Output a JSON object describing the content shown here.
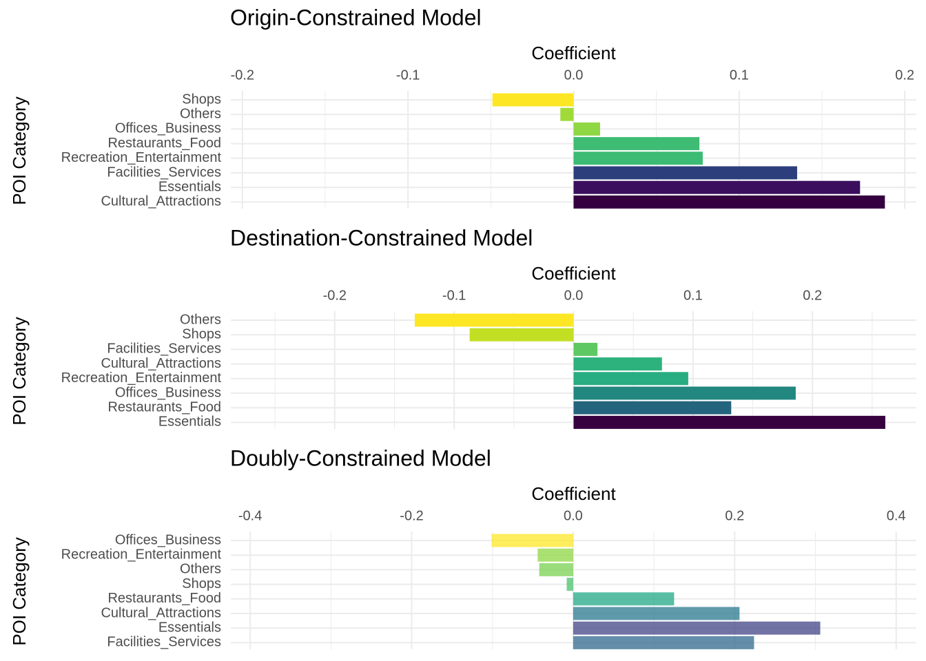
{
  "chart_data": [
    {
      "type": "bar",
      "orientation": "horizontal",
      "title": "Origin-Constrained Model",
      "x_label": "Coefficient",
      "y_label": "POI Category",
      "categories": [
        "Shops",
        "Others",
        "Offices_Business",
        "Restaurants_Food",
        "Recreation_Entertainment",
        "Facilities_Services",
        "Essentials",
        "Cultural_Attractions"
      ],
      "values": [
        -0.049,
        -0.008,
        0.016,
        0.076,
        0.078,
        0.135,
        0.173,
        0.188
      ],
      "colors": [
        "#fde725",
        "#a0da39",
        "#8fd744",
        "#3fbc73",
        "#3cbb75",
        "#2c3f7c",
        "#3b0f5e",
        "#35003f"
      ],
      "xlim": [
        -0.207,
        0.207
      ],
      "xticks": [
        -0.2,
        -0.1,
        {
          "value": 0,
          "label": "0.0"
        },
        0.1,
        0.2
      ],
      "xminor": [
        -0.15,
        -0.05,
        0.05,
        0.15
      ],
      "grid": true
    },
    {
      "type": "bar",
      "orientation": "horizontal",
      "title": "Destination-Constrained Model",
      "x_label": "Coefficient",
      "y_label": "POI Category",
      "categories": [
        "Others",
        "Shops",
        "Facilities_Services",
        "Cultural_Attractions",
        "Recreation_Entertainment",
        "Offices_Business",
        "Restaurants_Food",
        "Essentials"
      ],
      "values": [
        -0.133,
        -0.087,
        0.02,
        0.074,
        0.096,
        0.186,
        0.132,
        0.261
      ],
      "colors": [
        "#fde725",
        "#c2df23",
        "#5ec962",
        "#2db27d",
        "#27ad81",
        "#21877f",
        "#25647d",
        "#370140"
      ],
      "xlim": [
        -0.287,
        0.287
      ],
      "xticks": [
        -0.2,
        -0.1,
        {
          "value": 0,
          "label": "0.0"
        },
        0.1,
        0.2
      ],
      "xminor": [
        -0.25,
        -0.15,
        -0.05,
        0.05,
        0.15,
        0.25
      ],
      "grid": true
    },
    {
      "type": "bar",
      "orientation": "horizontal",
      "title": "Doubly-Constrained Model",
      "x_label": "Coefficient",
      "y_label": "POI Category",
      "categories": [
        "Offices_Business",
        "Recreation_Entertainment",
        "Others",
        "Shops",
        "Restaurants_Food",
        "Cultural_Attractions",
        "Essentials",
        "Facilities_Services"
      ],
      "values": [
        -0.101,
        -0.044,
        -0.042,
        -0.008,
        0.125,
        0.206,
        0.306,
        0.224
      ],
      "colors": [
        "#fde725",
        "#8fd744",
        "#7ad151",
        "#4ac16d",
        "#22a884",
        "#2a788e",
        "#414487",
        "#31688e"
      ],
      "opacity": 0.75,
      "xlim": [
        -0.424,
        0.425
      ],
      "xticks": [
        -0.4,
        -0.2,
        {
          "value": 0,
          "label": "0.0"
        },
        0.2,
        0.4
      ],
      "xminor": [
        -0.3,
        -0.1,
        0.1,
        0.3
      ],
      "grid": true
    }
  ]
}
